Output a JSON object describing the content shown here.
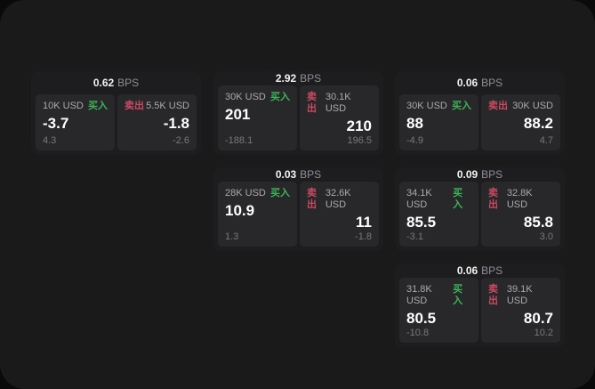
{
  "labels": {
    "bps_unit": "BPS",
    "buy": "买入",
    "sell": "卖出"
  },
  "colors": {
    "page_bg": "#0a0a0a",
    "panel_bg": "#1a1a1b",
    "card_bg": "#1d1d20",
    "tile_bg": "#28282b",
    "buy_green": "#3cb457",
    "sell_red": "#c94a63"
  },
  "cards": [
    {
      "bps": "0.62",
      "buy": {
        "amount": "10K USD",
        "price": "-3.7",
        "delta": "4.3"
      },
      "sell": {
        "amount": "5.5K USD",
        "price": "-1.8",
        "delta": "-2.6"
      }
    },
    {
      "bps": "2.92",
      "buy": {
        "amount": "30K USD",
        "price": "201",
        "delta": "-188.1"
      },
      "sell": {
        "amount": "30.1K USD",
        "price": "210",
        "delta": "196.5"
      }
    },
    {
      "bps": "0.06",
      "buy": {
        "amount": "30K USD",
        "price": "88",
        "delta": "-4.9"
      },
      "sell": {
        "amount": "30K USD",
        "price": "88.2",
        "delta": "4.7"
      }
    },
    {
      "bps": "0.03",
      "buy": {
        "amount": "28K USD",
        "price": "10.9",
        "delta": "1.3"
      },
      "sell": {
        "amount": "32.6K USD",
        "price": "11",
        "delta": "-1.8"
      }
    },
    {
      "bps": "0.09",
      "buy": {
        "amount": "34.1K USD",
        "price": "85.5",
        "delta": "-3.1"
      },
      "sell": {
        "amount": "32.8K USD",
        "price": "85.8",
        "delta": "3.0"
      }
    },
    {
      "bps": "0.06",
      "buy": {
        "amount": "31.8K USD",
        "price": "80.5",
        "delta": "-10.8"
      },
      "sell": {
        "amount": "39.1K USD",
        "price": "80.7",
        "delta": "10.2"
      }
    }
  ]
}
